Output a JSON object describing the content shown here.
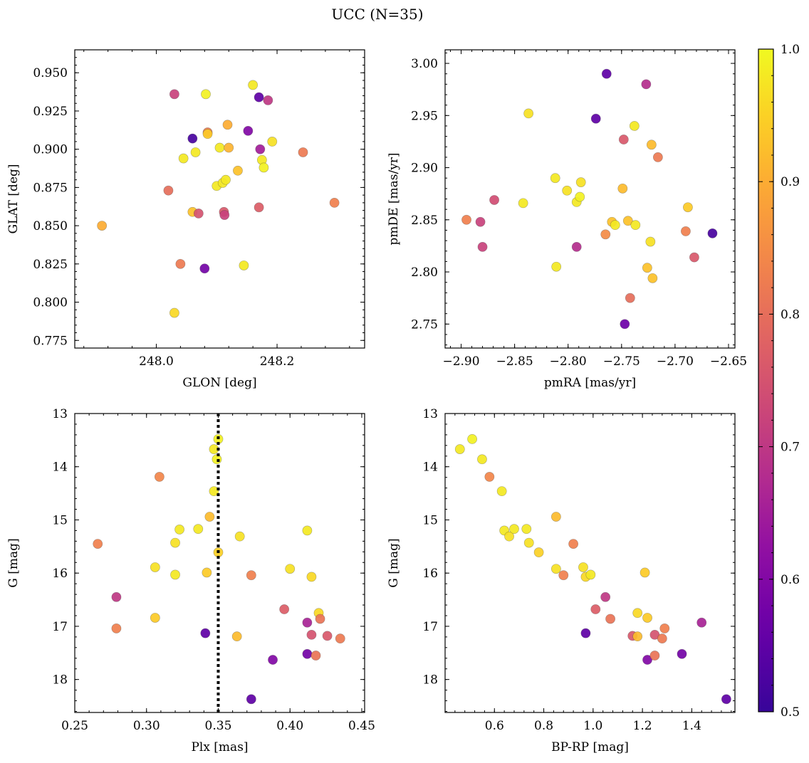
{
  "figure_title": "UCC (N=35)",
  "colorbar": {
    "ticks": [
      "0.5",
      "0.6",
      "0.7",
      "0.8",
      "0.9",
      "1.0"
    ],
    "range": [
      0.5,
      1.0
    ],
    "colormap": "plasma"
  },
  "chart_data": [
    {
      "type": "scatter",
      "xlabel": "GLON [deg]",
      "ylabel": "GLAT [deg]",
      "xlim": [
        247.865,
        248.345
      ],
      "ylim": [
        0.77,
        0.965
      ],
      "xticks": [
        "248.0",
        "248.2"
      ],
      "yticks": [
        "0.775",
        "0.800",
        "0.825",
        "0.850",
        "0.875",
        "0.900",
        "0.925",
        "0.950"
      ],
      "points": [
        {
          "x": 247.91,
          "y": 0.85,
          "c": 0.9
        },
        {
          "x": 248.02,
          "y": 0.873,
          "c": 0.8
        },
        {
          "x": 248.03,
          "y": 0.936,
          "c": 0.72
        },
        {
          "x": 248.03,
          "y": 0.793,
          "c": 0.96
        },
        {
          "x": 248.04,
          "y": 0.825,
          "c": 0.82
        },
        {
          "x": 248.045,
          "y": 0.894,
          "c": 0.98
        },
        {
          "x": 248.06,
          "y": 0.859,
          "c": 0.93
        },
        {
          "x": 248.06,
          "y": 0.907,
          "c": 0.52
        },
        {
          "x": 248.065,
          "y": 0.898,
          "c": 0.98
        },
        {
          "x": 248.07,
          "y": 0.858,
          "c": 0.75
        },
        {
          "x": 248.08,
          "y": 0.822,
          "c": 0.58
        },
        {
          "x": 248.082,
          "y": 0.936,
          "c": 0.99
        },
        {
          "x": 248.085,
          "y": 0.911,
          "c": 0.83
        },
        {
          "x": 248.085,
          "y": 0.91,
          "c": 0.94
        },
        {
          "x": 248.1,
          "y": 0.876,
          "c": 0.98
        },
        {
          "x": 248.105,
          "y": 0.901,
          "c": 0.98
        },
        {
          "x": 248.11,
          "y": 0.878,
          "c": 0.98
        },
        {
          "x": 248.112,
          "y": 0.859,
          "c": 0.76
        },
        {
          "x": 248.113,
          "y": 0.857,
          "c": 0.72
        },
        {
          "x": 248.115,
          "y": 0.88,
          "c": 0.98
        },
        {
          "x": 248.118,
          "y": 0.916,
          "c": 0.9
        },
        {
          "x": 248.12,
          "y": 0.901,
          "c": 0.91
        },
        {
          "x": 248.135,
          "y": 0.886,
          "c": 0.93
        },
        {
          "x": 248.145,
          "y": 0.824,
          "c": 0.98
        },
        {
          "x": 248.152,
          "y": 0.912,
          "c": 0.6
        },
        {
          "x": 248.16,
          "y": 0.942,
          "c": 0.98
        },
        {
          "x": 248.17,
          "y": 0.862,
          "c": 0.77
        },
        {
          "x": 248.17,
          "y": 0.934,
          "c": 0.55
        },
        {
          "x": 248.172,
          "y": 0.9,
          "c": 0.65
        },
        {
          "x": 248.175,
          "y": 0.893,
          "c": 0.98
        },
        {
          "x": 248.178,
          "y": 0.888,
          "c": 0.99
        },
        {
          "x": 248.185,
          "y": 0.932,
          "c": 0.7
        },
        {
          "x": 248.192,
          "y": 0.905,
          "c": 0.97
        },
        {
          "x": 248.243,
          "y": 0.898,
          "c": 0.82
        },
        {
          "x": 248.295,
          "y": 0.865,
          "c": 0.83
        }
      ]
    },
    {
      "type": "scatter",
      "xlabel": "pmRA [mas/yr]",
      "ylabel": "pmDE [mas/yr]",
      "xlim": [
        -2.915,
        -2.644
      ],
      "ylim": [
        2.727,
        3.013
      ],
      "xticks": [
        "−2.90",
        "−2.85",
        "−2.80",
        "−2.75",
        "−2.70",
        "−2.65"
      ],
      "yticks": [
        "2.75",
        "2.80",
        "2.85",
        "2.90",
        "2.95",
        "3.00"
      ],
      "points": [
        {
          "x": -2.895,
          "y": 2.85,
          "c": 0.83
        },
        {
          "x": -2.882,
          "y": 2.848,
          "c": 0.72
        },
        {
          "x": -2.88,
          "y": 2.824,
          "c": 0.72
        },
        {
          "x": -2.869,
          "y": 2.869,
          "c": 0.74
        },
        {
          "x": -2.842,
          "y": 2.866,
          "c": 0.98
        },
        {
          "x": -2.837,
          "y": 2.952,
          "c": 0.97
        },
        {
          "x": -2.812,
          "y": 2.89,
          "c": 0.98
        },
        {
          "x": -2.811,
          "y": 2.805,
          "c": 0.98
        },
        {
          "x": -2.801,
          "y": 2.878,
          "c": 0.97
        },
        {
          "x": -2.792,
          "y": 2.867,
          "c": 0.98
        },
        {
          "x": -2.792,
          "y": 2.824,
          "c": 0.68
        },
        {
          "x": -2.789,
          "y": 2.872,
          "c": 0.99
        },
        {
          "x": -2.788,
          "y": 2.886,
          "c": 0.97
        },
        {
          "x": -2.774,
          "y": 2.947,
          "c": 0.55
        },
        {
          "x": -2.765,
          "y": 2.836,
          "c": 0.85
        },
        {
          "x": -2.764,
          "y": 2.99,
          "c": 0.55
        },
        {
          "x": -2.759,
          "y": 2.848,
          "c": 0.93
        },
        {
          "x": -2.756,
          "y": 2.845,
          "c": 0.98
        },
        {
          "x": -2.749,
          "y": 2.88,
          "c": 0.92
        },
        {
          "x": -2.748,
          "y": 2.927,
          "c": 0.76
        },
        {
          "x": -2.747,
          "y": 2.75,
          "c": 0.57
        },
        {
          "x": -2.744,
          "y": 2.849,
          "c": 0.93
        },
        {
          "x": -2.742,
          "y": 2.775,
          "c": 0.8
        },
        {
          "x": -2.738,
          "y": 2.94,
          "c": 0.98
        },
        {
          "x": -2.737,
          "y": 2.845,
          "c": 0.98
        },
        {
          "x": -2.727,
          "y": 2.98,
          "c": 0.68
        },
        {
          "x": -2.726,
          "y": 2.804,
          "c": 0.93
        },
        {
          "x": -2.723,
          "y": 2.829,
          "c": 0.97
        },
        {
          "x": -2.722,
          "y": 2.922,
          "c": 0.92
        },
        {
          "x": -2.721,
          "y": 2.794,
          "c": 0.93
        },
        {
          "x": -2.716,
          "y": 2.91,
          "c": 0.82
        },
        {
          "x": -2.69,
          "y": 2.839,
          "c": 0.83
        },
        {
          "x": -2.688,
          "y": 2.862,
          "c": 0.94
        },
        {
          "x": -2.682,
          "y": 2.814,
          "c": 0.76
        },
        {
          "x": -2.665,
          "y": 2.837,
          "c": 0.52
        }
      ]
    },
    {
      "type": "scatter",
      "xlabel": "Plx [mas]",
      "ylabel": "G [mag]",
      "xlim": [
        0.25,
        0.452
      ],
      "ylim": [
        18.62,
        13.0
      ],
      "y_inverted": true,
      "xticks": [
        "0.25",
        "0.30",
        "0.35",
        "0.40",
        "0.45"
      ],
      "yticks": [
        "13",
        "14",
        "15",
        "16",
        "17",
        "18"
      ],
      "vline": 0.35,
      "points": [
        {
          "x": 0.266,
          "y": 15.45,
          "c": 0.83
        },
        {
          "x": 0.279,
          "y": 16.45,
          "c": 0.7
        },
        {
          "x": 0.279,
          "y": 17.04,
          "c": 0.83
        },
        {
          "x": 0.306,
          "y": 15.89,
          "c": 0.97
        },
        {
          "x": 0.306,
          "y": 16.84,
          "c": 0.94
        },
        {
          "x": 0.309,
          "y": 14.19,
          "c": 0.84
        },
        {
          "x": 0.32,
          "y": 15.43,
          "c": 0.97
        },
        {
          "x": 0.32,
          "y": 16.03,
          "c": 0.98
        },
        {
          "x": 0.323,
          "y": 15.18,
          "c": 0.98
        },
        {
          "x": 0.336,
          "y": 15.17,
          "c": 0.98
        },
        {
          "x": 0.341,
          "y": 17.13,
          "c": 0.55
        },
        {
          "x": 0.342,
          "y": 15.99,
          "c": 0.94
        },
        {
          "x": 0.344,
          "y": 14.94,
          "c": 0.92
        },
        {
          "x": 0.347,
          "y": 14.46,
          "c": 0.98
        },
        {
          "x": 0.347,
          "y": 13.67,
          "c": 0.98
        },
        {
          "x": 0.349,
          "y": 13.86,
          "c": 0.99
        },
        {
          "x": 0.35,
          "y": 13.48,
          "c": 0.99
        },
        {
          "x": 0.35,
          "y": 15.61,
          "c": 0.95
        },
        {
          "x": 0.363,
          "y": 17.19,
          "c": 0.92
        },
        {
          "x": 0.365,
          "y": 15.31,
          "c": 0.97
        },
        {
          "x": 0.373,
          "y": 16.04,
          "c": 0.83
        },
        {
          "x": 0.373,
          "y": 18.37,
          "c": 0.55
        },
        {
          "x": 0.388,
          "y": 17.63,
          "c": 0.6
        },
        {
          "x": 0.396,
          "y": 16.68,
          "c": 0.77
        },
        {
          "x": 0.4,
          "y": 15.92,
          "c": 0.97
        },
        {
          "x": 0.412,
          "y": 16.93,
          "c": 0.66
        },
        {
          "x": 0.412,
          "y": 17.52,
          "c": 0.58
        },
        {
          "x": 0.412,
          "y": 15.2,
          "c": 0.98
        },
        {
          "x": 0.415,
          "y": 17.16,
          "c": 0.75
        },
        {
          "x": 0.415,
          "y": 16.07,
          "c": 0.96
        },
        {
          "x": 0.418,
          "y": 17.55,
          "c": 0.81
        },
        {
          "x": 0.42,
          "y": 16.75,
          "c": 0.96
        },
        {
          "x": 0.421,
          "y": 16.86,
          "c": 0.81
        },
        {
          "x": 0.426,
          "y": 17.18,
          "c": 0.76
        },
        {
          "x": 0.435,
          "y": 17.23,
          "c": 0.82
        }
      ]
    },
    {
      "type": "scatter",
      "xlabel": "BP-RP [mag]",
      "ylabel": "G [mag]",
      "xlim": [
        0.4,
        1.575
      ],
      "ylim": [
        18.62,
        13.0
      ],
      "y_inverted": true,
      "xticks": [
        "0.6",
        "0.8",
        "1.0",
        "1.2",
        "1.4"
      ],
      "yticks": [
        "13",
        "14",
        "15",
        "16",
        "17",
        "18"
      ],
      "points": [
        {
          "x": 0.46,
          "y": 13.67,
          "c": 0.98
        },
        {
          "x": 0.51,
          "y": 13.48,
          "c": 0.99
        },
        {
          "x": 0.55,
          "y": 13.86,
          "c": 0.98
        },
        {
          "x": 0.58,
          "y": 14.19,
          "c": 0.84
        },
        {
          "x": 0.63,
          "y": 14.46,
          "c": 0.98
        },
        {
          "x": 0.64,
          "y": 15.2,
          "c": 0.98
        },
        {
          "x": 0.66,
          "y": 15.31,
          "c": 0.97
        },
        {
          "x": 0.68,
          "y": 15.17,
          "c": 0.98
        },
        {
          "x": 0.73,
          "y": 15.17,
          "c": 0.98
        },
        {
          "x": 0.74,
          "y": 15.43,
          "c": 0.97
        },
        {
          "x": 0.78,
          "y": 15.61,
          "c": 0.95
        },
        {
          "x": 0.85,
          "y": 14.94,
          "c": 0.92
        },
        {
          "x": 0.85,
          "y": 15.92,
          "c": 0.97
        },
        {
          "x": 0.88,
          "y": 16.04,
          "c": 0.83
        },
        {
          "x": 0.92,
          "y": 15.45,
          "c": 0.83
        },
        {
          "x": 0.96,
          "y": 15.89,
          "c": 0.97
        },
        {
          "x": 0.97,
          "y": 16.07,
          "c": 0.96
        },
        {
          "x": 0.97,
          "y": 17.13,
          "c": 0.55
        },
        {
          "x": 0.99,
          "y": 16.03,
          "c": 0.98
        },
        {
          "x": 1.01,
          "y": 16.68,
          "c": 0.77
        },
        {
          "x": 1.05,
          "y": 16.45,
          "c": 0.7
        },
        {
          "x": 1.07,
          "y": 16.86,
          "c": 0.81
        },
        {
          "x": 1.16,
          "y": 17.18,
          "c": 0.76
        },
        {
          "x": 1.18,
          "y": 16.75,
          "c": 0.96
        },
        {
          "x": 1.18,
          "y": 17.19,
          "c": 0.92
        },
        {
          "x": 1.21,
          "y": 15.99,
          "c": 0.94
        },
        {
          "x": 1.22,
          "y": 16.84,
          "c": 0.94
        },
        {
          "x": 1.22,
          "y": 17.63,
          "c": 0.6
        },
        {
          "x": 1.25,
          "y": 17.55,
          "c": 0.81
        },
        {
          "x": 1.25,
          "y": 17.16,
          "c": 0.75
        },
        {
          "x": 1.28,
          "y": 17.23,
          "c": 0.82
        },
        {
          "x": 1.29,
          "y": 17.04,
          "c": 0.83
        },
        {
          "x": 1.36,
          "y": 17.52,
          "c": 0.58
        },
        {
          "x": 1.44,
          "y": 16.93,
          "c": 0.66
        },
        {
          "x": 1.54,
          "y": 18.37,
          "c": 0.55
        }
      ]
    }
  ]
}
